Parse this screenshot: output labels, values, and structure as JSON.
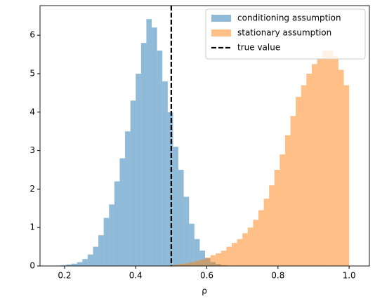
{
  "chart_data": {
    "type": "histogram",
    "xlabel": "ρ",
    "xlim": [
      0.131,
      1.057
    ],
    "ylim": [
      0,
      6.77
    ],
    "xticks": [
      0.2,
      0.4,
      0.6,
      0.8,
      {
        "value": 1,
        "label": "1.0"
      }
    ],
    "yticks": [
      0,
      1,
      2,
      3,
      4,
      5,
      6
    ],
    "legend": "upper right",
    "series": [
      {
        "name": "conditioning assumption",
        "color": "#1f77b4",
        "opacity": 0.5,
        "bins": [
          0.16,
          0.175,
          0.19,
          0.205,
          0.22,
          0.235,
          0.25,
          0.265,
          0.28,
          0.295,
          0.31,
          0.325,
          0.34,
          0.355,
          0.37,
          0.385,
          0.4,
          0.415,
          0.43,
          0.445,
          0.46,
          0.475,
          0.49,
          0.505,
          0.52,
          0.535,
          0.55,
          0.565,
          0.58,
          0.595,
          0.61,
          0.625,
          0.64,
          0.655,
          0.67,
          0.685,
          0.7
        ],
        "values": [
          0.005,
          0.01,
          0.02,
          0.04,
          0.06,
          0.1,
          0.18,
          0.3,
          0.5,
          0.8,
          1.25,
          1.6,
          2.2,
          2.8,
          3.5,
          4.3,
          5.0,
          5.8,
          6.42,
          6.2,
          5.6,
          4.8,
          4.0,
          3.1,
          2.5,
          1.8,
          1.1,
          0.7,
          0.4,
          0.2,
          0.1,
          0.05,
          0.02,
          0.01,
          0.005,
          0.002
        ]
      },
      {
        "name": "stationary assumption",
        "color": "#ff7f0e",
        "opacity": 0.5,
        "bins": [
          0.46,
          0.475,
          0.49,
          0.505,
          0.52,
          0.535,
          0.55,
          0.565,
          0.58,
          0.595,
          0.61,
          0.625,
          0.64,
          0.655,
          0.67,
          0.685,
          0.7,
          0.715,
          0.73,
          0.745,
          0.76,
          0.775,
          0.79,
          0.805,
          0.82,
          0.835,
          0.85,
          0.865,
          0.88,
          0.895,
          0.91,
          0.925,
          0.94,
          0.955,
          0.97,
          0.985,
          1.0
        ],
        "values": [
          0.005,
          0.01,
          0.02,
          0.03,
          0.05,
          0.07,
          0.1,
          0.13,
          0.17,
          0.22,
          0.28,
          0.33,
          0.4,
          0.5,
          0.6,
          0.7,
          0.85,
          1.0,
          1.2,
          1.45,
          1.75,
          2.1,
          2.5,
          2.9,
          3.4,
          3.9,
          4.4,
          4.7,
          5.0,
          5.25,
          5.4,
          5.6,
          5.6,
          5.45,
          5.1,
          4.7
        ]
      }
    ],
    "vline": {
      "name": "true value",
      "x": 0.5,
      "color": "#000000",
      "dashed": true
    }
  }
}
